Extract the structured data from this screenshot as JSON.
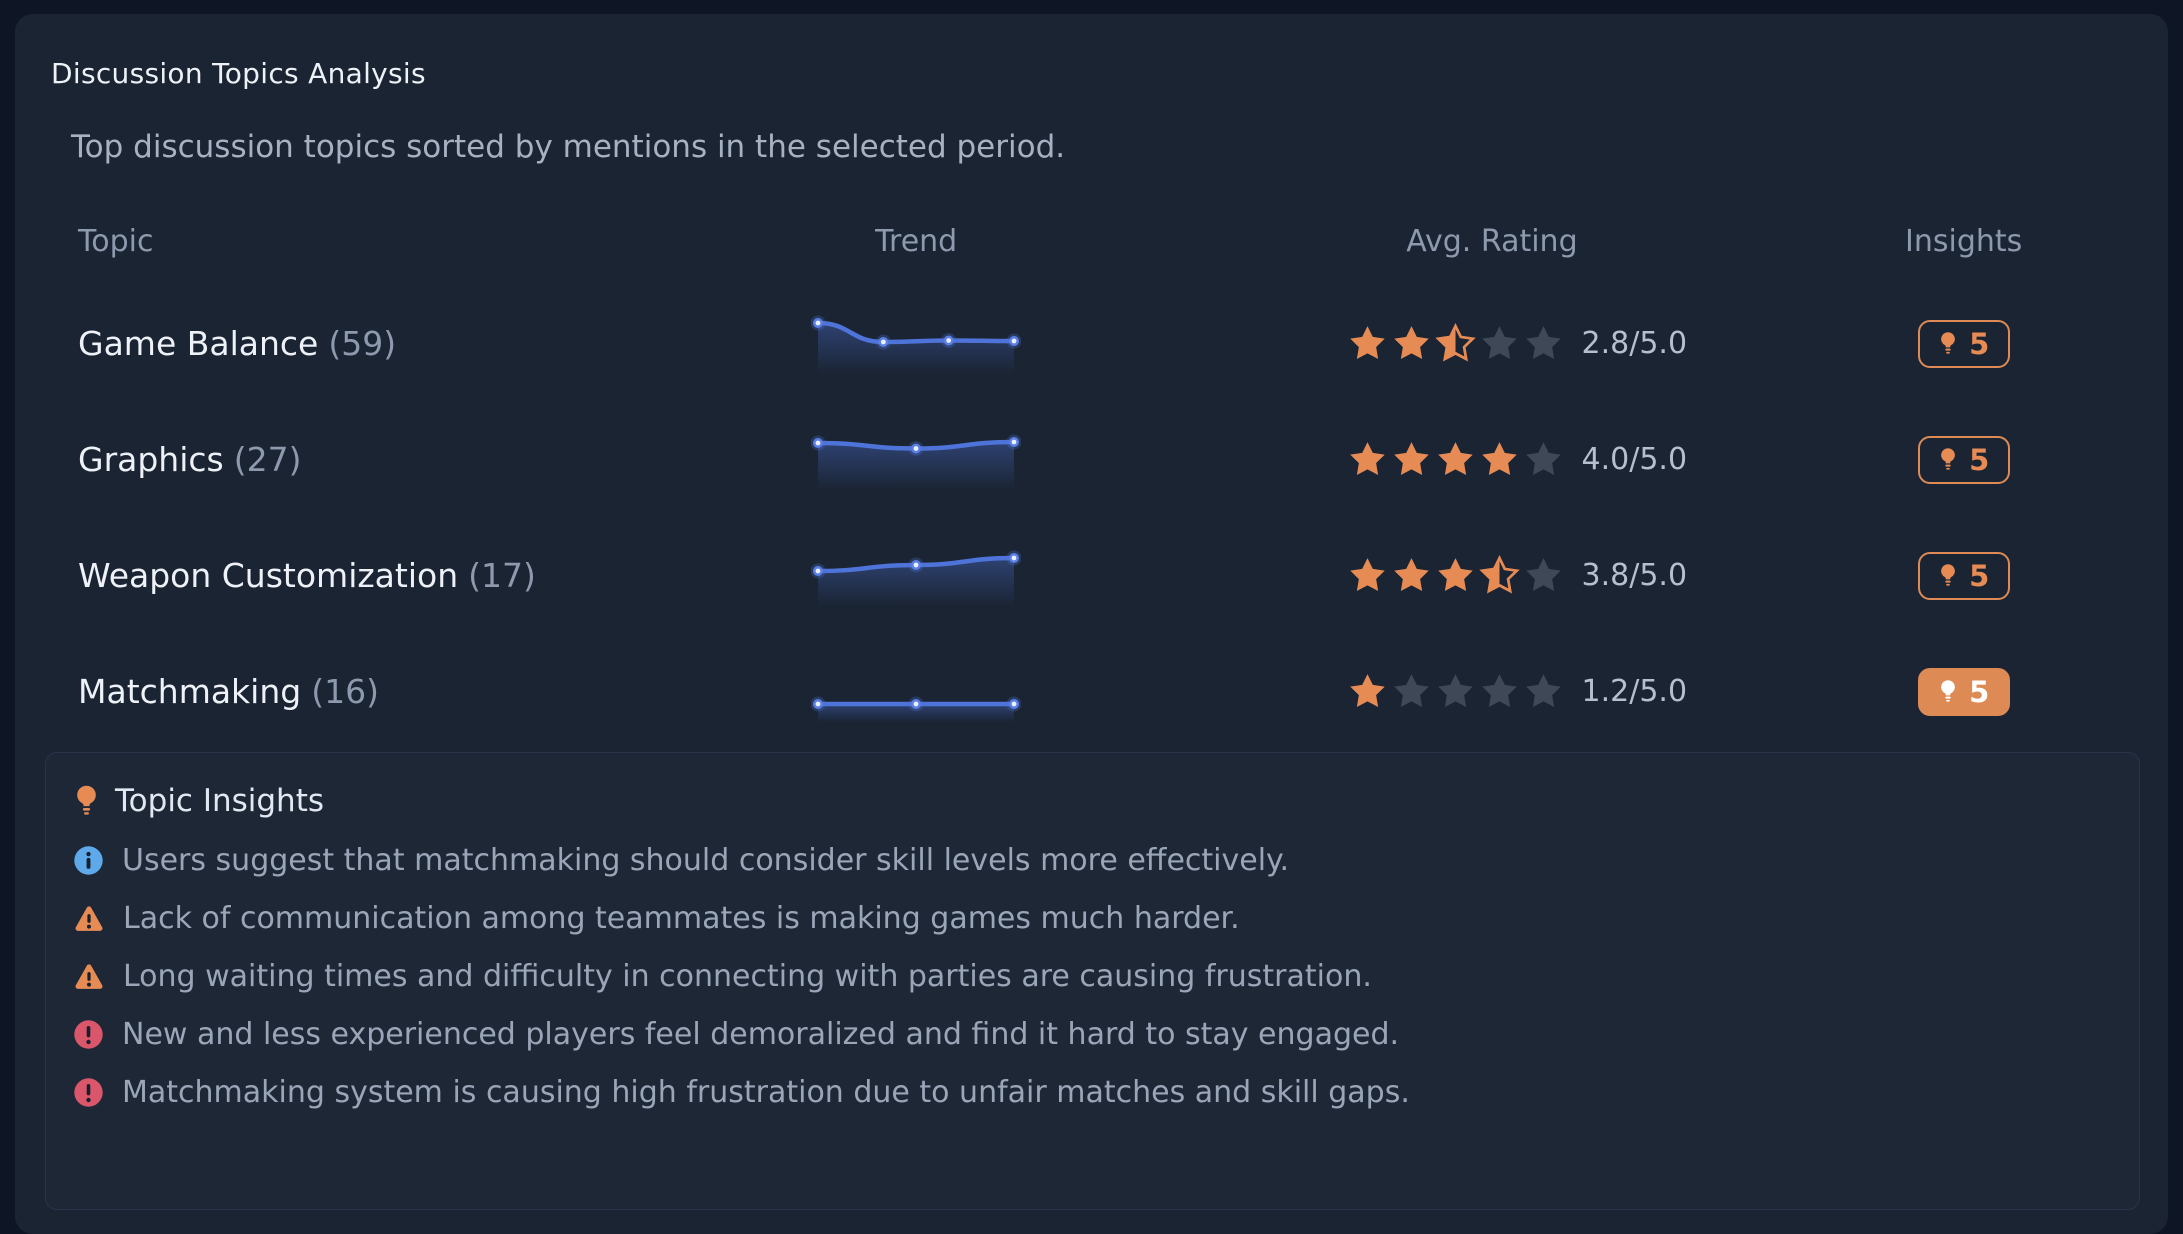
{
  "card": {
    "title": "Discussion Topics Analysis",
    "subtitle": "Top discussion topics sorted by mentions in the selected period."
  },
  "table": {
    "headers": [
      "Topic",
      "Trend",
      "Avg. Rating",
      "Insights"
    ],
    "rows": [
      {
        "topic": "Game Balance",
        "mentions": "(59)",
        "trend": [
          4.5,
          2.6,
          2.75,
          2.7
        ],
        "stars": {
          "full": 2,
          "half": 1,
          "empty": 2
        },
        "rating_label": "2.8/5.0",
        "insights_count": "5",
        "active": false
      },
      {
        "topic": "Graphics",
        "mentions": "(27)",
        "trend": [
          4.1,
          3.55,
          4.2
        ],
        "stars": {
          "full": 4,
          "half": 0,
          "empty": 1
        },
        "rating_label": "4.0/5.0",
        "insights_count": "5",
        "active": false
      },
      {
        "topic": "Weapon Customization",
        "mentions": "(17)",
        "trend": [
          2.9,
          3.5,
          4.2
        ],
        "stars": {
          "full": 3,
          "half": 1,
          "empty": 1
        },
        "rating_label": "3.8/5.0",
        "insights_count": "5",
        "active": false
      },
      {
        "topic": "Matchmaking",
        "mentions": "(16)",
        "trend": [
          1.2,
          1.2,
          1.2
        ],
        "stars": {
          "full": 1,
          "half": 0,
          "empty": 4
        },
        "rating_label": "1.2/5.0",
        "insights_count": "5",
        "active": true
      }
    ]
  },
  "insights_panel": {
    "title": "Topic Insights",
    "items": [
      {
        "severity": "info",
        "text": "Users suggest that matchmaking should consider skill levels more effectively."
      },
      {
        "severity": "warning",
        "text": "Lack of communication among teammates is making games much harder."
      },
      {
        "severity": "warning",
        "text": "Long waiting times and difficulty in connecting with parties are causing frustration."
      },
      {
        "severity": "error",
        "text": "New and less experienced players feel demoralized and find it hard to stay engaged."
      },
      {
        "severity": "error",
        "text": "Matchmaking system is causing high frustration due to unfair matches and skill gaps."
      }
    ]
  },
  "colors": {
    "accent_orange": "#dd8a55",
    "star_filled": "#e78b55",
    "star_empty": "#3e4857",
    "sparkline_blue": "#4f74d9",
    "info_blue": "#5ea9ea",
    "warning_orange": "#e78b55",
    "error_red": "#d9566b",
    "card_bg": "#1a2433",
    "page_bg": "#0e1626"
  }
}
